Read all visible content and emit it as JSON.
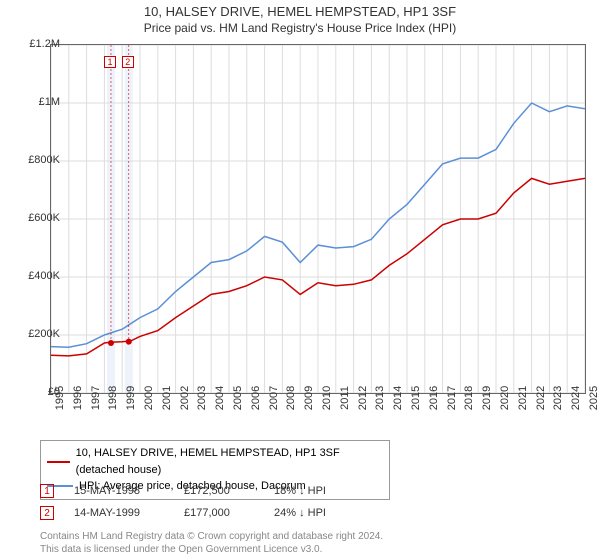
{
  "title": {
    "main": "10, HALSEY DRIVE, HEMEL HEMPSTEAD, HP1 3SF",
    "sub": "Price paid vs. HM Land Registry's House Price Index (HPI)",
    "fontsize_main": 13,
    "fontsize_sub": 12,
    "color": "#333333"
  },
  "chart": {
    "type": "line",
    "background_color": "#ffffff",
    "border_color": "#666666",
    "grid_color": "#dddddd",
    "x": {
      "min": 1995,
      "max": 2025,
      "tick_step": 1,
      "labels": [
        "1995",
        "1996",
        "1997",
        "1998",
        "1999",
        "2000",
        "2001",
        "2002",
        "2003",
        "2004",
        "2005",
        "2006",
        "2007",
        "2008",
        "2009",
        "2010",
        "2011",
        "2012",
        "2013",
        "2014",
        "2015",
        "2016",
        "2017",
        "2018",
        "2019",
        "2020",
        "2021",
        "2022",
        "2023",
        "2024",
        "2025"
      ],
      "label_fontsize": 11,
      "label_rotation": -90
    },
    "y": {
      "min": 0,
      "max": 1200000,
      "tick_step": 200000,
      "labels": [
        "£0",
        "£200K",
        "£400K",
        "£600K",
        "£800K",
        "£1M",
        "£1.2M"
      ],
      "label_fontsize": 11
    },
    "series": [
      {
        "name": "10, HALSEY DRIVE, HEMEL HEMPSTEAD, HP1 3SF (detached house)",
        "color": "#cc0000",
        "line_width": 1.5,
        "data": [
          [
            1995,
            130000
          ],
          [
            1996,
            128000
          ],
          [
            1997,
            135000
          ],
          [
            1998,
            172500
          ],
          [
            1998.3,
            175000
          ],
          [
            1999,
            177000
          ],
          [
            1999.5,
            180000
          ],
          [
            2000,
            195000
          ],
          [
            2001,
            215000
          ],
          [
            2002,
            260000
          ],
          [
            2003,
            300000
          ],
          [
            2004,
            340000
          ],
          [
            2005,
            350000
          ],
          [
            2006,
            370000
          ],
          [
            2007,
            400000
          ],
          [
            2008,
            390000
          ],
          [
            2009,
            340000
          ],
          [
            2010,
            380000
          ],
          [
            2011,
            370000
          ],
          [
            2012,
            375000
          ],
          [
            2013,
            390000
          ],
          [
            2014,
            440000
          ],
          [
            2015,
            480000
          ],
          [
            2016,
            530000
          ],
          [
            2017,
            580000
          ],
          [
            2018,
            600000
          ],
          [
            2019,
            600000
          ],
          [
            2020,
            620000
          ],
          [
            2021,
            690000
          ],
          [
            2022,
            740000
          ],
          [
            2023,
            720000
          ],
          [
            2024,
            730000
          ],
          [
            2025,
            740000
          ]
        ]
      },
      {
        "name": "HPI: Average price, detached house, Dacorum",
        "color": "#5b8fd6",
        "line_width": 1.5,
        "data": [
          [
            1995,
            160000
          ],
          [
            1996,
            158000
          ],
          [
            1997,
            170000
          ],
          [
            1998,
            200000
          ],
          [
            1999,
            220000
          ],
          [
            2000,
            260000
          ],
          [
            2001,
            290000
          ],
          [
            2002,
            350000
          ],
          [
            2003,
            400000
          ],
          [
            2004,
            450000
          ],
          [
            2005,
            460000
          ],
          [
            2006,
            490000
          ],
          [
            2007,
            540000
          ],
          [
            2008,
            520000
          ],
          [
            2009,
            450000
          ],
          [
            2010,
            510000
          ],
          [
            2011,
            500000
          ],
          [
            2012,
            505000
          ],
          [
            2013,
            530000
          ],
          [
            2014,
            600000
          ],
          [
            2015,
            650000
          ],
          [
            2016,
            720000
          ],
          [
            2017,
            790000
          ],
          [
            2018,
            810000
          ],
          [
            2019,
            810000
          ],
          [
            2020,
            840000
          ],
          [
            2021,
            930000
          ],
          [
            2022,
            1000000
          ],
          [
            2023,
            970000
          ],
          [
            2024,
            990000
          ],
          [
            2025,
            980000
          ]
        ]
      }
    ],
    "sale_markers": [
      {
        "num": "1",
        "x": 1998.37,
        "y": 172500,
        "band_color": "#eef2fa"
      },
      {
        "num": "2",
        "x": 1999.37,
        "y": 177000,
        "band_color": "#eef2fa"
      }
    ],
    "sale_dot_color": "#cc0000",
    "sale_dot_radius": 3
  },
  "legend": {
    "border_color": "#999999",
    "fontsize": 11,
    "items": [
      {
        "color": "#cc0000",
        "label": "10, HALSEY DRIVE, HEMEL HEMPSTEAD, HP1 3SF (detached house)"
      },
      {
        "color": "#5b8fd6",
        "label": "HPI: Average price, detached house, Dacorum"
      }
    ]
  },
  "sales_table": {
    "fontsize": 11,
    "marker_border": "#cc0000",
    "rows": [
      {
        "num": "1",
        "date": "15-MAY-1998",
        "price": "£172,500",
        "delta": "18% ↓ HPI"
      },
      {
        "num": "2",
        "date": "14-MAY-1999",
        "price": "£177,000",
        "delta": "24% ↓ HPI"
      }
    ]
  },
  "footer": {
    "line1": "Contains HM Land Registry data © Crown copyright and database right 2024.",
    "line2": "This data is licensed under the Open Government Licence v3.0.",
    "color": "#888888",
    "fontsize": 10
  }
}
